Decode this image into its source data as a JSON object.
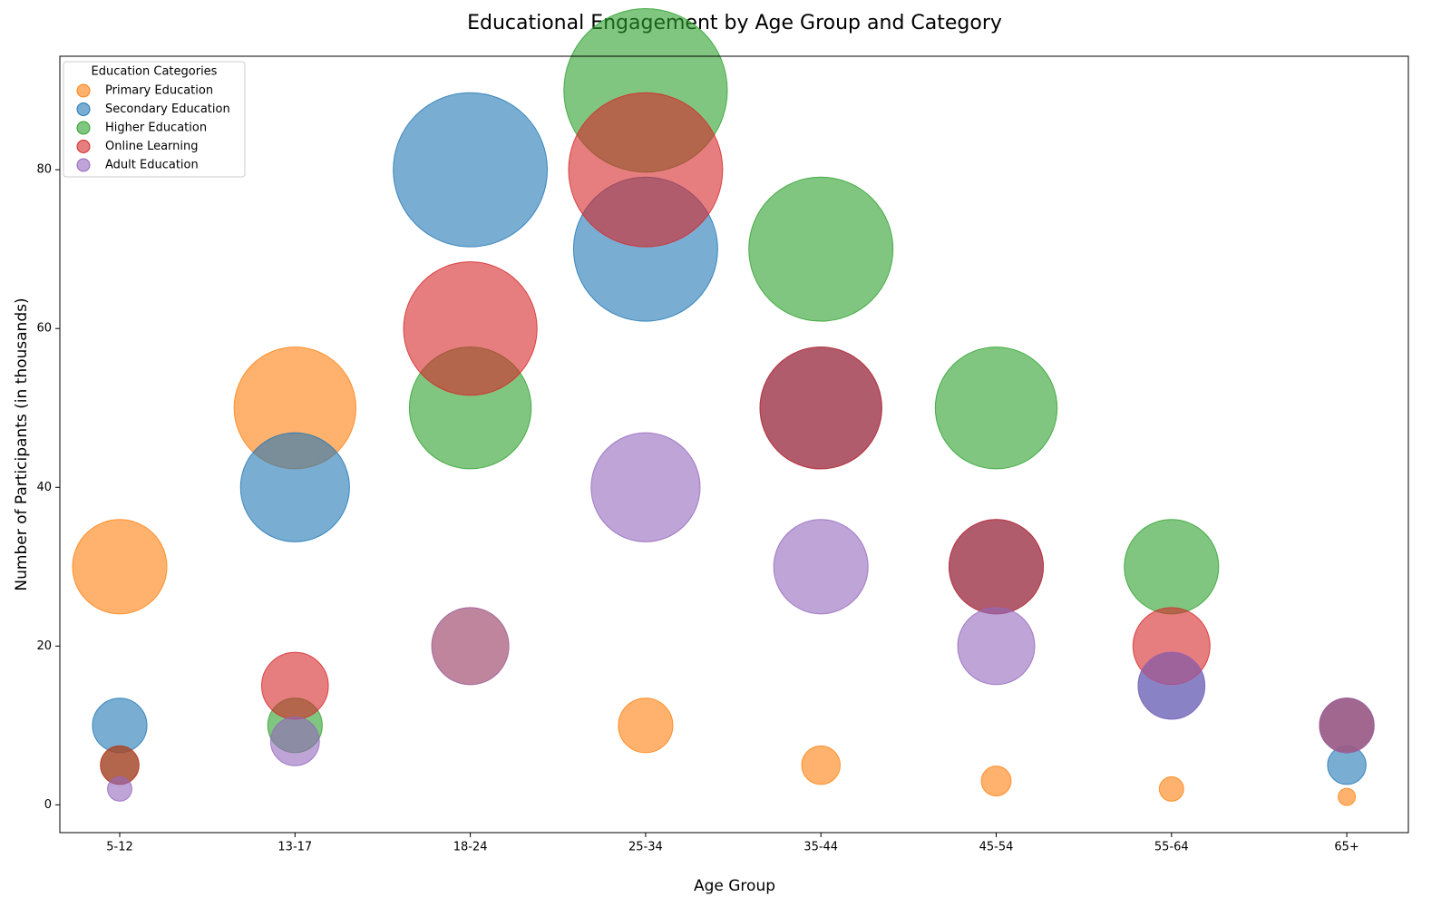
{
  "chart_data": {
    "type": "bubble",
    "title": "Educational Engagement by Age Group and Category",
    "x_label": "Age Group",
    "y_label": "Number of Participants (in thousands)",
    "legend_title": "Education Categories",
    "legend_position": "upper left",
    "categories": [
      "5-12",
      "13-17",
      "18-24",
      "25-34",
      "35-44",
      "45-54",
      "55-64",
      "65+"
    ],
    "series": [
      {
        "name": "Primary Education",
        "color": "#ff7f0e",
        "values": [
          30,
          50,
          20,
          10,
          5,
          3,
          2,
          1
        ]
      },
      {
        "name": "Secondary Education",
        "color": "#1f77b4",
        "values": [
          10,
          40,
          80,
          70,
          50,
          30,
          15,
          5
        ]
      },
      {
        "name": "Higher Education",
        "color": "#2ca02c",
        "values": [
          5,
          10,
          50,
          90,
          70,
          50,
          30,
          10
        ]
      },
      {
        "name": "Online Learning",
        "color": "#d62728",
        "values": [
          5,
          15,
          60,
          80,
          50,
          30,
          20,
          10
        ]
      },
      {
        "name": "Adult Education",
        "color": "#9467bd",
        "values": [
          2,
          8,
          20,
          40,
          30,
          20,
          15,
          10
        ]
      }
    ],
    "ylim": [
      -3.5,
      94.3
    ],
    "yticks": [
      0,
      20,
      40,
      60,
      80
    ]
  }
}
